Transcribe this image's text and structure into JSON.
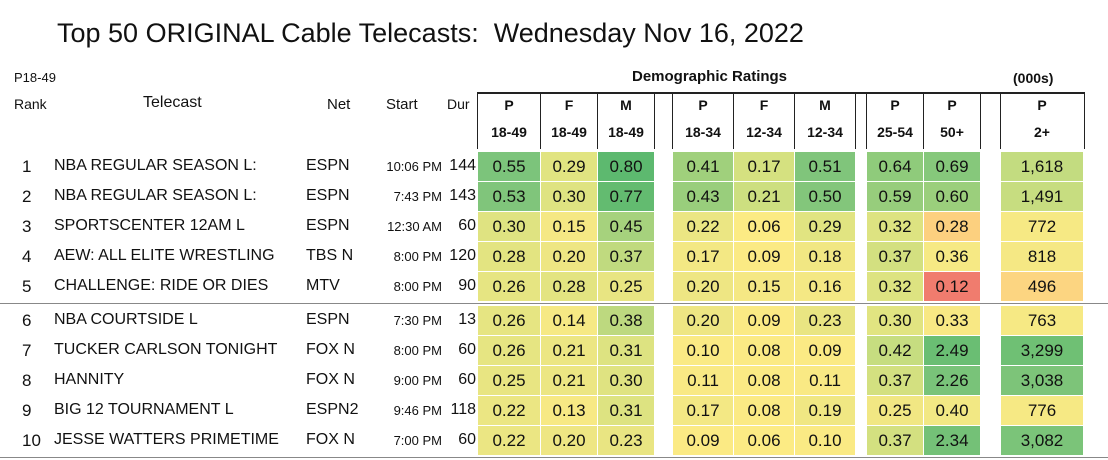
{
  "title": "Top 50 ORIGINAL Cable Telecasts:  Wednesday Nov 16, 2022",
  "header": {
    "demo_label": "P18-49",
    "rank_label": "Rank",
    "telecast_label": "Telecast",
    "net_label": "Net",
    "start_label": "Start",
    "dur_label": "Dur",
    "group_title": "Demographic Ratings",
    "units": "(000s)"
  },
  "columns": [
    {
      "top": "P",
      "bottom": "18-49"
    },
    {
      "top": "F",
      "bottom": "18-49"
    },
    {
      "top": "M",
      "bottom": "18-49"
    },
    {
      "top": "P",
      "bottom": "18-34"
    },
    {
      "top": "F",
      "bottom": "12-34"
    },
    {
      "top": "M",
      "bottom": "12-34"
    },
    {
      "top": "P",
      "bottom": "25-54"
    },
    {
      "top": "P",
      "bottom": "50+"
    },
    {
      "top": "P",
      "bottom": "2+"
    }
  ],
  "rows": [
    {
      "rank": "1",
      "telecast": "NBA REGULAR SEASON    L:",
      "net": "ESPN",
      "start": "10:06 PM",
      "dur": "144",
      "vals": [
        "0.55",
        "0.29",
        "0.80",
        "0.41",
        "0.17",
        "0.51",
        "0.64",
        "0.69",
        "1,618"
      ],
      "colors": [
        "#7cc47b",
        "#e1e481",
        "#5db96f",
        "#a0d07c",
        "#d5e180",
        "#80c57b",
        "#8fcb7b",
        "#86c87b",
        "#c3dc80"
      ]
    },
    {
      "rank": "2",
      "telecast": "NBA REGULAR SEASON    L:",
      "net": "ESPN",
      "start": "7:43 PM",
      "dur": "143",
      "vals": [
        "0.53",
        "0.30",
        "0.77",
        "0.43",
        "0.21",
        "0.50",
        "0.59",
        "0.60",
        "1,491"
      ],
      "colors": [
        "#80c57b",
        "#dfe381",
        "#63bb70",
        "#99ce7c",
        "#cddf80",
        "#83c67b",
        "#97cd7c",
        "#9bcf7c",
        "#c7dd80"
      ]
    },
    {
      "rank": "3",
      "telecast": "SPORTSCENTER 12AM  L",
      "net": "ESPN",
      "start": "12:30 AM",
      "dur": "60",
      "vals": [
        "0.30",
        "0.15",
        "0.45",
        "0.22",
        "0.06",
        "0.29",
        "0.32",
        "0.28",
        "772"
      ],
      "colors": [
        "#dfe381",
        "#f5e884",
        "#a6d27d",
        "#ebe683",
        "#fceb84",
        "#e1e481",
        "#dde381",
        "#fcd07f",
        "#f6e984"
      ]
    },
    {
      "rank": "4",
      "telecast": "AEW: ALL ELITE WRESTLING",
      "net": "TBS N",
      "start": "8:00 PM",
      "dur": "120",
      "vals": [
        "0.28",
        "0.20",
        "0.37",
        "0.17",
        "0.09",
        "0.18",
        "0.37",
        "0.36",
        "818"
      ],
      "colors": [
        "#e3e481",
        "#eee683",
        "#c0da7f",
        "#f3e884",
        "#fbea84",
        "#f1e783",
        "#d3e080",
        "#f6e984",
        "#f5e884"
      ]
    },
    {
      "rank": "5",
      "telecast": "CHALLENGE: RIDE OR DIES",
      "net": "MTV",
      "start": "8:00 PM",
      "dur": "90",
      "vals": [
        "0.26",
        "0.28",
        "0.25",
        "0.20",
        "0.15",
        "0.16",
        "0.32",
        "0.12",
        "496"
      ],
      "colors": [
        "#e6e582",
        "#e3e481",
        "#e8e582",
        "#eee683",
        "#f5e884",
        "#f4e884",
        "#dde381",
        "#f07c6e",
        "#fcd581"
      ]
    },
    {
      "rank": "6",
      "telecast": "NBA COURTSIDE  L",
      "net": "ESPN",
      "start": "7:30 PM",
      "dur": "13",
      "vals": [
        "0.26",
        "0.14",
        "0.38",
        "0.20",
        "0.09",
        "0.23",
        "0.30",
        "0.33",
        "763"
      ],
      "colors": [
        "#e6e582",
        "#f6e984",
        "#bdd97f",
        "#eee683",
        "#fbea84",
        "#e9e582",
        "#e1e481",
        "#f8e884",
        "#f6e984"
      ]
    },
    {
      "rank": "7",
      "telecast": "TUCKER CARLSON TONIGHT",
      "net": "FOX N",
      "start": "8:00 PM",
      "dur": "60",
      "vals": [
        "0.26",
        "0.21",
        "0.31",
        "0.10",
        "0.08",
        "0.09",
        "0.42",
        "2.49",
        "3,299"
      ],
      "colors": [
        "#e6e582",
        "#ece683",
        "#dde381",
        "#faea84",
        "#fbea84",
        "#fbea84",
        "#c6dd80",
        "#6abe73",
        "#6fc074"
      ]
    },
    {
      "rank": "8",
      "telecast": "HANNITY",
      "net": "FOX N",
      "start": "9:00 PM",
      "dur": "60",
      "vals": [
        "0.25",
        "0.21",
        "0.30",
        "0.11",
        "0.08",
        "0.11",
        "0.37",
        "2.26",
        "3,038"
      ],
      "colors": [
        "#e8e582",
        "#ece683",
        "#dfe381",
        "#f9e984",
        "#fbea84",
        "#f9e984",
        "#d3e080",
        "#79c379",
        "#7dc479"
      ]
    },
    {
      "rank": "9",
      "telecast": "BIG 12 TOURNAMENT  L",
      "net": "ESPN2",
      "start": "9:46 PM",
      "dur": "118",
      "vals": [
        "0.22",
        "0.13",
        "0.31",
        "0.17",
        "0.08",
        "0.19",
        "0.25",
        "0.40",
        "776"
      ],
      "colors": [
        "#ebe683",
        "#f7e984",
        "#dde381",
        "#f3e884",
        "#fbea84",
        "#f0e783",
        "#f1e783",
        "#f2e884",
        "#f6e984"
      ]
    },
    {
      "rank": "10",
      "telecast": "JESSE WATTERS PRIMETIME",
      "net": "FOX N",
      "start": "7:00 PM",
      "dur": "60",
      "vals": [
        "0.22",
        "0.20",
        "0.23",
        "0.09",
        "0.06",
        "0.10",
        "0.37",
        "2.34",
        "3,082"
      ],
      "colors": [
        "#ebe683",
        "#eee683",
        "#e9e582",
        "#fbea84",
        "#fceb84",
        "#faea84",
        "#d3e080",
        "#74c177",
        "#7bc479"
      ]
    }
  ]
}
